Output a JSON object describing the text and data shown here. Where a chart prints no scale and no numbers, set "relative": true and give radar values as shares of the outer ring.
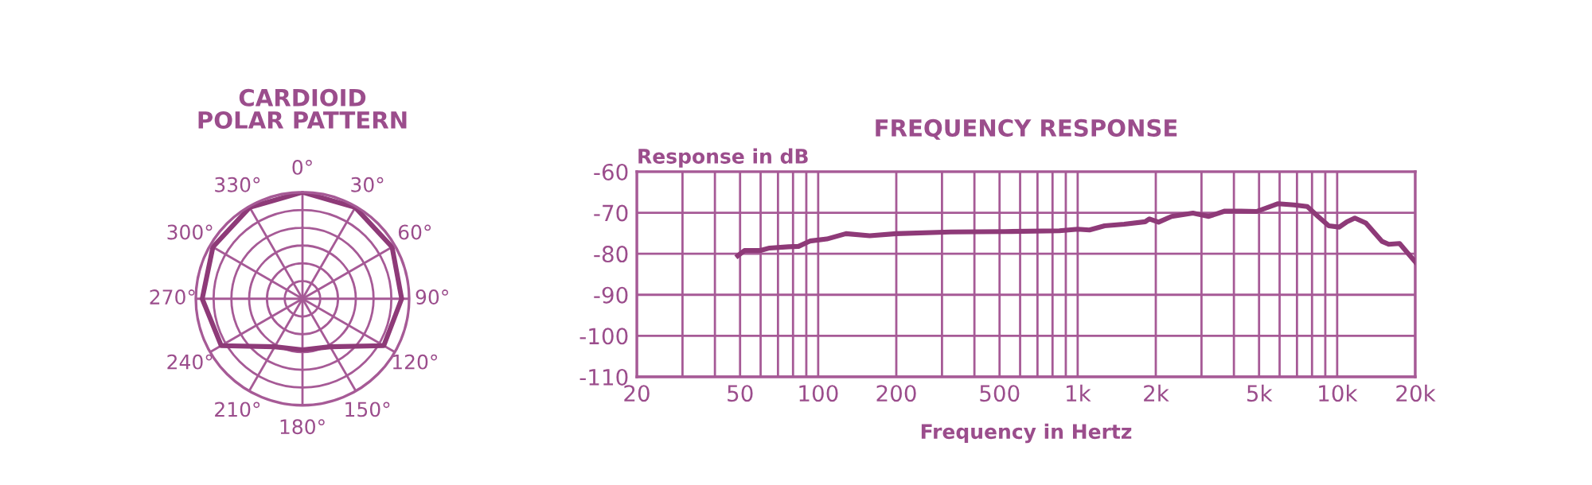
{
  "chart_data": [
    {
      "type": "radar",
      "title": "CARDIOID\nPOLAR PATTERN",
      "relative": true,
      "grid": true,
      "categories": [
        "0°",
        "30°",
        "60°",
        "90°",
        "120°",
        "150°",
        "180°",
        "210°",
        "240°",
        "270°",
        "300°",
        "330°"
      ],
      "series": [
        {
          "color": "#8e3a78",
          "values": [
            1,
            0.99,
            0.97,
            0.93,
            0.88,
            0.52,
            0.48,
            0.52,
            0.88,
            0.94,
            0.97,
            0.99
          ]
        }
      ]
    },
    {
      "type": "line",
      "title": "FREQUENCY RESPONSE",
      "xlabel": "Frequency in Hertz",
      "ylabel": "Response in dB",
      "log": "x",
      "grid": true,
      "xlim": [
        20,
        20000
      ],
      "xticks": [
        20,
        50,
        100,
        200,
        500,
        {
          "value": 1000,
          "label": "1k"
        },
        {
          "value": 2000,
          "label": "2k"
        },
        {
          "value": 5000,
          "label": "5k"
        },
        {
          "value": 10000,
          "label": "10k"
        },
        {
          "value": 20000,
          "label": "20k"
        }
      ],
      "ylim": [
        -110,
        -60
      ],
      "yticks": [
        -110,
        -100,
        -90,
        -80,
        -70,
        -60
      ],
      "series": [
        {
          "color": "#8e3a78",
          "x": [
            49,
            52,
            60,
            65,
            77,
            84,
            93,
            108,
            128,
            158,
            200,
            324,
            526,
            850,
            1000,
            1110,
            1270,
            1510,
            1820,
            1890,
            2050,
            2300,
            2780,
            3200,
            3690,
            4260,
            4890,
            5920,
            6820,
            7670,
            8440,
            9280,
            10200,
            10900,
            11700,
            12900,
            14900,
            15800,
            17400,
            20000
          ],
          "values": [
            -80.5,
            -79.2,
            -79.2,
            -78.6,
            -78.3,
            -78.2,
            -76.9,
            -76.4,
            -75.1,
            -75.6,
            -75.1,
            -74.7,
            -74.6,
            -74.4,
            -74.0,
            -74.2,
            -73.2,
            -72.8,
            -72.2,
            -71.5,
            -72.3,
            -70.9,
            -70.1,
            -70.9,
            -69.6,
            -69.6,
            -69.7,
            -67.8,
            -68.1,
            -68.5,
            -70.9,
            -73.2,
            -73.5,
            -72.2,
            -71.3,
            -72.5,
            -77.0,
            -77.7,
            -77.5,
            -82.0
          ]
        }
      ]
    }
  ]
}
